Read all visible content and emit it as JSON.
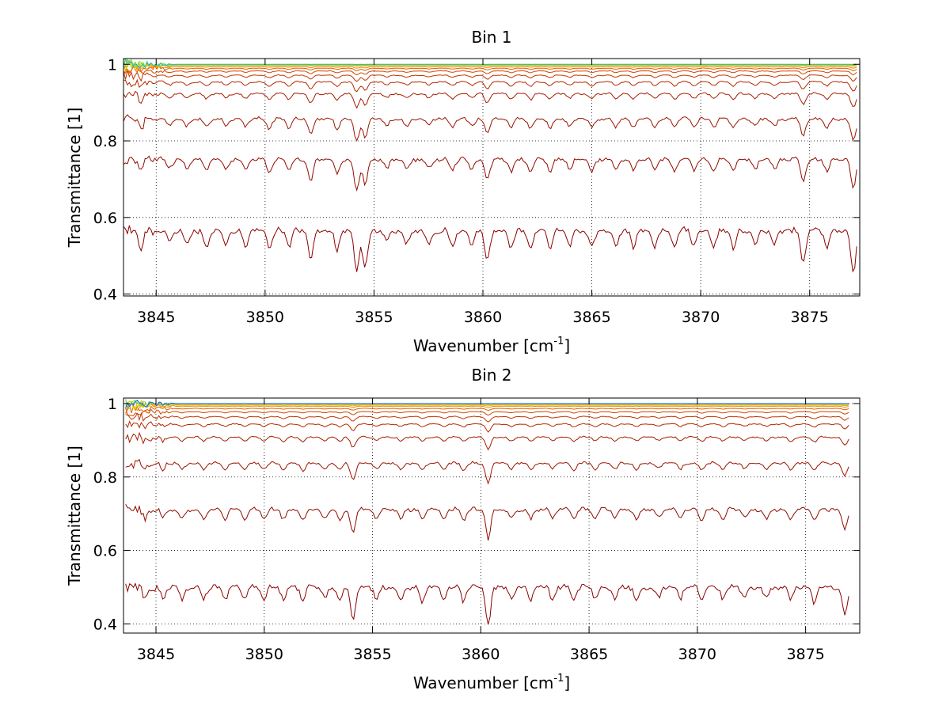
{
  "chart_data": [
    {
      "type": "line",
      "title": "Bin 1",
      "xlabel": "Wavenumber [cm",
      "xlabel_sup": "-1",
      "xlabel_end": "]",
      "ylabel": "Transmittance [1]",
      "xlim": [
        3843.5,
        3877.3
      ],
      "ylim": [
        0.395,
        1.015
      ],
      "xticks": [
        3845,
        3850,
        3855,
        3860,
        3865,
        3870,
        3875
      ],
      "yticks": [
        0.4,
        0.6,
        0.8,
        1
      ],
      "ytick_labels": [
        "0.4",
        "0.6",
        "0.8",
        "1"
      ],
      "grid": true,
      "x_range": [
        3843.5,
        3877.2
      ],
      "absorption_lines": [
        {
          "x": 3844.3,
          "d": 0.5
        },
        {
          "x": 3845.6,
          "d": 0.4
        },
        {
          "x": 3846.4,
          "d": 0.45
        },
        {
          "x": 3847.3,
          "d": 0.5
        },
        {
          "x": 3848.2,
          "d": 0.4
        },
        {
          "x": 3849.1,
          "d": 0.45
        },
        {
          "x": 3850.2,
          "d": 0.55
        },
        {
          "x": 3851.1,
          "d": 0.5
        },
        {
          "x": 3852.1,
          "d": 0.9
        },
        {
          "x": 3853.3,
          "d": 0.6
        },
        {
          "x": 3854.2,
          "d": 1.3
        },
        {
          "x": 3854.6,
          "d": 1.1
        },
        {
          "x": 3855.6,
          "d": 0.4
        },
        {
          "x": 3856.5,
          "d": 0.45
        },
        {
          "x": 3857.5,
          "d": 0.4
        },
        {
          "x": 3858.6,
          "d": 0.45
        },
        {
          "x": 3859.5,
          "d": 0.4
        },
        {
          "x": 3860.2,
          "d": 0.85
        },
        {
          "x": 3861.3,
          "d": 0.5
        },
        {
          "x": 3862.2,
          "d": 0.55
        },
        {
          "x": 3863.1,
          "d": 0.5
        },
        {
          "x": 3864.0,
          "d": 0.45
        },
        {
          "x": 3865.0,
          "d": 0.55
        },
        {
          "x": 3866.1,
          "d": 0.45
        },
        {
          "x": 3866.9,
          "d": 0.5
        },
        {
          "x": 3867.9,
          "d": 0.45
        },
        {
          "x": 3868.8,
          "d": 0.5
        },
        {
          "x": 3869.7,
          "d": 0.45
        },
        {
          "x": 3870.6,
          "d": 0.45
        },
        {
          "x": 3871.5,
          "d": 0.5
        },
        {
          "x": 3872.5,
          "d": 0.45
        },
        {
          "x": 3873.4,
          "d": 0.45
        },
        {
          "x": 3874.7,
          "d": 0.95
        },
        {
          "x": 3875.8,
          "d": 0.5
        },
        {
          "x": 3877.0,
          "d": 1.3
        }
      ],
      "series": [
        {
          "baseline": 0.57,
          "scale": 0.085,
          "color": "#8b0000"
        },
        {
          "baseline": 0.755,
          "scale": 0.06,
          "color": "#8f0b00"
        },
        {
          "baseline": 0.86,
          "scale": 0.045,
          "color": "#9a1400"
        },
        {
          "baseline": 0.925,
          "scale": 0.028,
          "color": "#a51e00"
        },
        {
          "baseline": 0.955,
          "scale": 0.02,
          "color": "#b32800"
        },
        {
          "baseline": 0.972,
          "scale": 0.012,
          "color": "#c13600"
        },
        {
          "baseline": 0.983,
          "scale": 0.008,
          "color": "#d04800"
        },
        {
          "baseline": 0.99,
          "scale": 0.005,
          "color": "#e06000"
        },
        {
          "baseline": 0.994,
          "scale": 0.003,
          "color": "#ef8600"
        },
        {
          "baseline": 0.997,
          "scale": 0.0015,
          "color": "#f5a800"
        },
        {
          "baseline": 0.998,
          "scale": 0.001,
          "color": "#e6c800"
        },
        {
          "baseline": 0.999,
          "scale": 0.0006,
          "color": "#a8d800"
        },
        {
          "baseline": 0.9995,
          "scale": 0.0004,
          "color": "#60d070"
        },
        {
          "baseline": 1.0,
          "scale": 0.0003,
          "color": "#20c0c0"
        }
      ]
    },
    {
      "type": "line",
      "title": "Bin 2",
      "xlabel": "Wavenumber [cm",
      "xlabel_sup": "-1",
      "xlabel_end": "]",
      "ylabel": "Transmittance [1]",
      "xlim": [
        3843.5,
        3877.5
      ],
      "ylim": [
        0.375,
        1.015
      ],
      "xticks": [
        3845,
        3850,
        3855,
        3860,
        3865,
        3870,
        3875
      ],
      "yticks": [
        0.4,
        0.6,
        0.8,
        1
      ],
      "ytick_labels": [
        "0.4",
        "0.6",
        "0.8",
        "1"
      ],
      "grid": true,
      "x_range": [
        3843.6,
        3877.0
      ],
      "absorption_lines": [
        {
          "x": 3844.5,
          "d": 0.45
        },
        {
          "x": 3845.3,
          "d": 0.4
        },
        {
          "x": 3846.2,
          "d": 0.45
        },
        {
          "x": 3847.2,
          "d": 0.4
        },
        {
          "x": 3848.2,
          "d": 0.4
        },
        {
          "x": 3849.1,
          "d": 0.4
        },
        {
          "x": 3850.0,
          "d": 0.4
        },
        {
          "x": 3850.9,
          "d": 0.45
        },
        {
          "x": 3851.8,
          "d": 0.5
        },
        {
          "x": 3852.8,
          "d": 0.45
        },
        {
          "x": 3853.5,
          "d": 0.45
        },
        {
          "x": 3854.1,
          "d": 1.1
        },
        {
          "x": 3855.2,
          "d": 0.4
        },
        {
          "x": 3856.3,
          "d": 0.45
        },
        {
          "x": 3857.3,
          "d": 0.5
        },
        {
          "x": 3858.3,
          "d": 0.4
        },
        {
          "x": 3859.2,
          "d": 0.45
        },
        {
          "x": 3860.35,
          "d": 1.35
        },
        {
          "x": 3861.4,
          "d": 0.45
        },
        {
          "x": 3862.3,
          "d": 0.45
        },
        {
          "x": 3863.3,
          "d": 0.4
        },
        {
          "x": 3864.3,
          "d": 0.45
        },
        {
          "x": 3865.3,
          "d": 0.4
        },
        {
          "x": 3866.2,
          "d": 0.4
        },
        {
          "x": 3867.2,
          "d": 0.45
        },
        {
          "x": 3868.2,
          "d": 0.4
        },
        {
          "x": 3869.2,
          "d": 0.4
        },
        {
          "x": 3870.2,
          "d": 0.45
        },
        {
          "x": 3871.2,
          "d": 0.4
        },
        {
          "x": 3872.2,
          "d": 0.4
        },
        {
          "x": 3873.2,
          "d": 0.45
        },
        {
          "x": 3874.3,
          "d": 0.45
        },
        {
          "x": 3875.4,
          "d": 0.5
        },
        {
          "x": 3876.8,
          "d": 0.9
        }
      ],
      "series": [
        {
          "baseline": 0.505,
          "scale": 0.08,
          "color": "#8b0000"
        },
        {
          "baseline": 0.715,
          "scale": 0.06,
          "color": "#8f0b00"
        },
        {
          "baseline": 0.84,
          "scale": 0.04,
          "color": "#9a1400"
        },
        {
          "baseline": 0.91,
          "scale": 0.025,
          "color": "#a51e00"
        },
        {
          "baseline": 0.945,
          "scale": 0.016,
          "color": "#b32800"
        },
        {
          "baseline": 0.965,
          "scale": 0.011,
          "color": "#c13600"
        },
        {
          "baseline": 0.978,
          "scale": 0.007,
          "color": "#d04800"
        },
        {
          "baseline": 0.987,
          "scale": 0.004,
          "color": "#e06000"
        },
        {
          "baseline": 0.993,
          "scale": 0.003,
          "color": "#ef8600"
        },
        {
          "baseline": 0.996,
          "scale": 0.002,
          "color": "#f5a800"
        },
        {
          "baseline": 0.998,
          "scale": 0.001,
          "color": "#e6c800"
        },
        {
          "baseline": 0.999,
          "scale": 0.0006,
          "color": "#a8d800"
        },
        {
          "baseline": 0.9995,
          "scale": 0.0004,
          "color": "#60d070"
        },
        {
          "baseline": 1.0,
          "scale": 0.0003,
          "color": "#1060ff"
        }
      ]
    }
  ]
}
